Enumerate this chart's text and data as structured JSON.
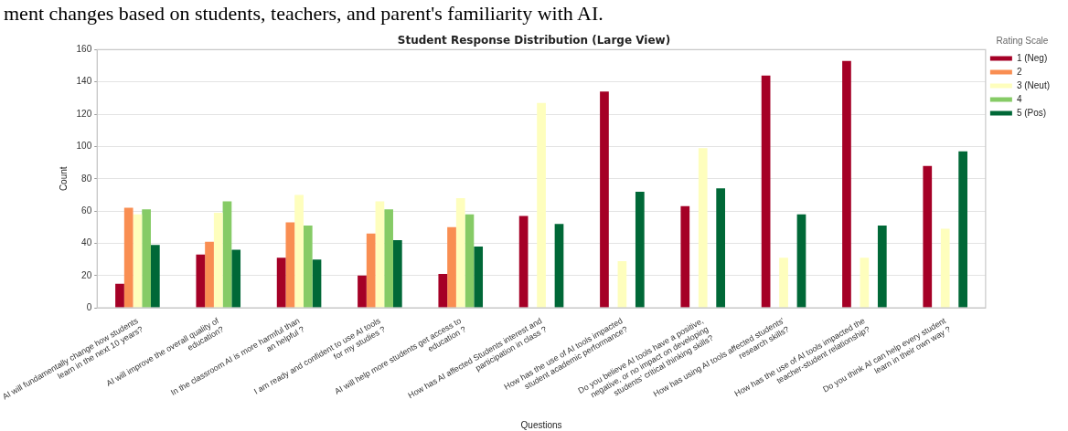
{
  "chart_data": {
    "type": "bar",
    "title": "Student Response Distribution (Large View)",
    "xlabel": "Questions",
    "ylabel": "Count",
    "legend_title": "Rating Scale",
    "annotations": [
      "ment changes based on students, teachers, and parent's familiarity with AI."
    ],
    "categories": [
      "AI will fundamentally change how students learn in the next 10 years?",
      "AI will improve the overall quality of education?",
      "In the classroom AI is more harmful than an helpful ?",
      "I am ready and confident to use AI tools for my studies ?",
      "AI will help more students get access to education ?",
      "How has AI affected Students interest and participation in class ?",
      "How has the use of AI tools impacted student academic performance?",
      "Do you believe AI tools have a positive, negative, or no impact on developing students' critical thinking skills?",
      "How has using AI tools affected students' research skills?",
      "How has the use of AI tools impacted the teacher-student relationship?",
      "Do you think AI can help every student learn in their own way ?"
    ],
    "series": [
      {
        "name": "1 (Neg)",
        "color": "#a50026",
        "values": [
          15,
          33,
          31,
          20,
          21,
          57,
          134,
          63,
          144,
          153,
          88
        ]
      },
      {
        "name": "2",
        "color": "#f98e52",
        "values": [
          62,
          41,
          53,
          46,
          50,
          null,
          null,
          null,
          null,
          null,
          null
        ]
      },
      {
        "name": "3 (Neut)",
        "color": "#fefebd",
        "values": [
          58,
          59,
          70,
          66,
          68,
          127,
          29,
          99,
          31,
          31,
          49
        ]
      },
      {
        "name": "4",
        "color": "#86cb66",
        "values": [
          61,
          66,
          51,
          61,
          58,
          null,
          null,
          null,
          null,
          null,
          null
        ]
      },
      {
        "name": "5 (Pos)",
        "color": "#006837",
        "values": [
          39,
          36,
          30,
          42,
          38,
          52,
          72,
          74,
          58,
          51,
          97
        ]
      }
    ],
    "ylim": [
      0,
      160
    ],
    "yticks": [
      0,
      20,
      40,
      60,
      80,
      100,
      120,
      140,
      160
    ],
    "grid": "y",
    "legend": "top right"
  }
}
